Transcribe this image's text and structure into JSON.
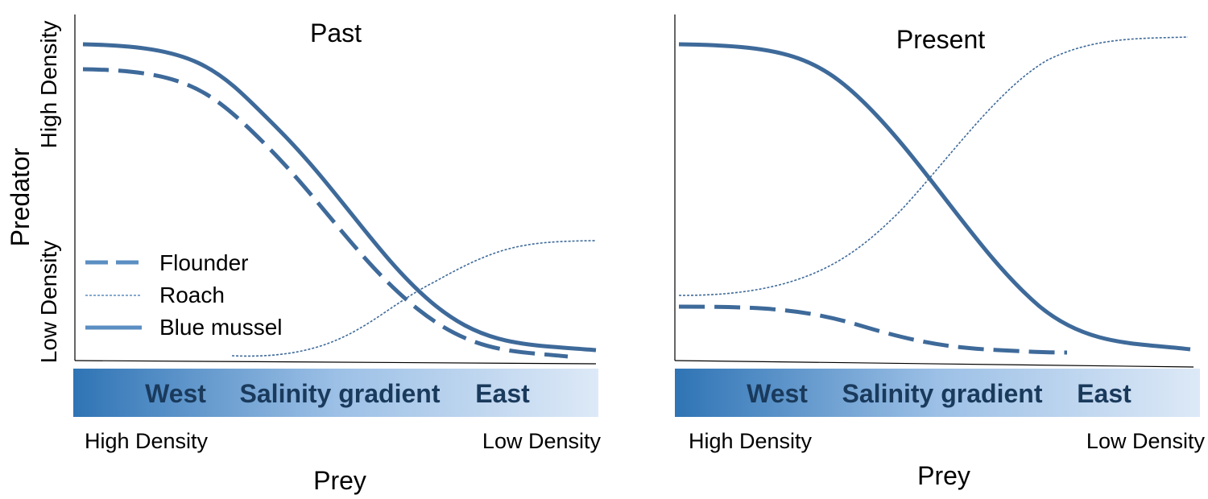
{
  "y_axis": {
    "title": "Predator",
    "high_label": "High  Density",
    "low_label": "Low Density"
  },
  "legend": [
    {
      "label": "Flounder",
      "style": "dashed"
    },
    {
      "label": "Roach",
      "style": "dotted"
    },
    {
      "label": "Blue mussel",
      "style": "solid"
    }
  ],
  "colors": {
    "line": "#3e6a9a",
    "legend_line": "#5b8ec2",
    "gradient_dark": "#2f74b5",
    "gradient_light": "#dde9f7",
    "gradient_text": "#1a3a5c"
  },
  "panels": [
    {
      "title": "Past",
      "gradient_labels": {
        "west": "West",
        "middle": "Salinity gradient",
        "east": "East"
      },
      "prey_left": "High Density",
      "prey_right": "Low Density",
      "x_title": "Prey"
    },
    {
      "title": "Present",
      "gradient_labels": {
        "west": "West",
        "middle": "Salinity gradient",
        "east": "East"
      },
      "prey_left": "High Density",
      "prey_right": "Low Density",
      "x_title": "Prey"
    }
  ]
}
